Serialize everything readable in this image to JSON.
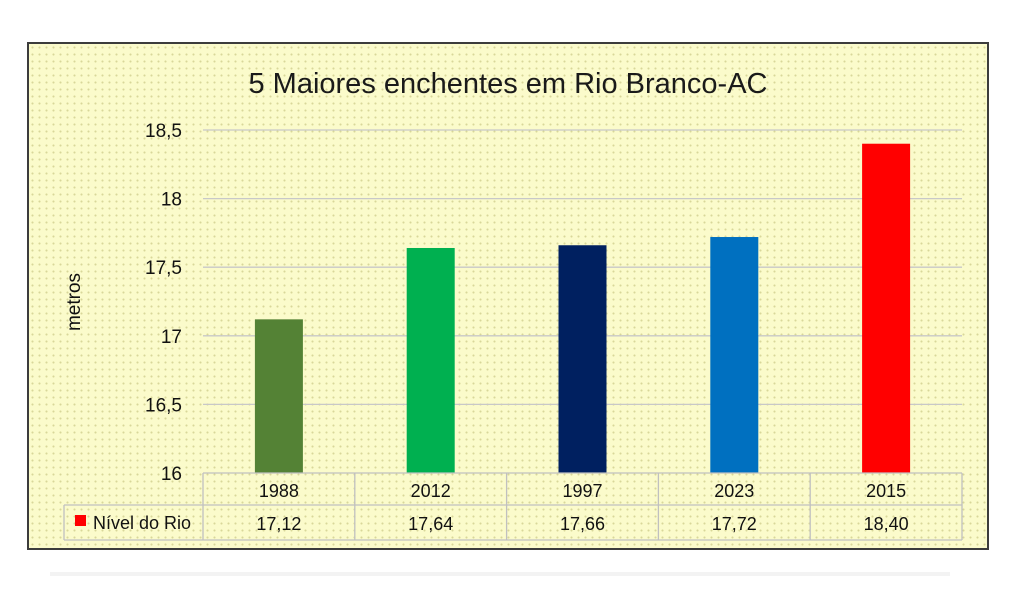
{
  "chart_data": {
    "type": "bar",
    "title": "5 Maiores enchentes em Rio Branco-AC",
    "xlabel": "",
    "ylabel": "metros",
    "ylim": [
      16,
      18.5
    ],
    "yticks": [
      "16",
      "16,5",
      "17",
      "17,5",
      "18",
      "18,5"
    ],
    "ytick_values": [
      16,
      16.5,
      17,
      17.5,
      18,
      18.5
    ],
    "categories": [
      "1988",
      "2012",
      "1997",
      "2023",
      "2015"
    ],
    "series": [
      {
        "name": "Nível do Rio",
        "values": [
          17.12,
          17.64,
          17.66,
          17.72,
          18.4
        ],
        "value_labels": [
          "17,12",
          "17,64",
          "17,66",
          "17,72",
          "18,40"
        ],
        "legend_color": "#ff0000"
      }
    ],
    "bar_colors": [
      "#548235",
      "#00b050",
      "#002060",
      "#0070c0",
      "#ff0000"
    ],
    "grid": true,
    "legend": "data-table",
    "data_table": true
  }
}
